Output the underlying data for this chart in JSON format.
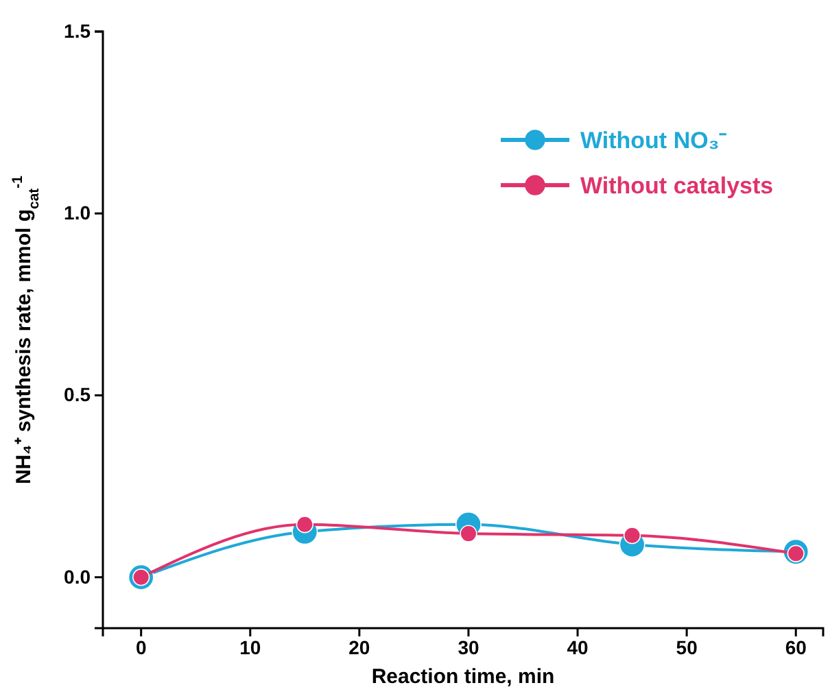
{
  "chart_data": {
    "type": "line",
    "xlabel": "Reaction time, min",
    "ylabel": "NH₄⁺ synthesis rate, mmol g$_{cat}$$^{-1}$",
    "x": [
      0,
      15,
      30,
      45,
      60
    ],
    "series": [
      {
        "name": "Without NO₃⁻",
        "color": "#1fa8d8",
        "values": [
          0,
          0.125,
          0.145,
          0.09,
          0.07
        ]
      },
      {
        "name": "Without catalysts",
        "color": "#e0336b",
        "values": [
          0,
          0.145,
          0.12,
          0.115,
          0.065
        ]
      }
    ],
    "xlim": [
      -3.5,
      62.5
    ],
    "ylim": [
      -0.14,
      1.5
    ],
    "xticks": [
      0,
      10,
      20,
      30,
      40,
      50,
      60
    ],
    "yticks": [
      {
        "value": 0,
        "label": "0.0"
      },
      {
        "value": 0.5,
        "label": "0.5"
      },
      {
        "value": 1,
        "label": "1.0"
      },
      {
        "value": 1.5,
        "label": "1.5"
      }
    ],
    "legend": "top right",
    "marker": "circle",
    "line_style": "solid",
    "grid": false
  }
}
